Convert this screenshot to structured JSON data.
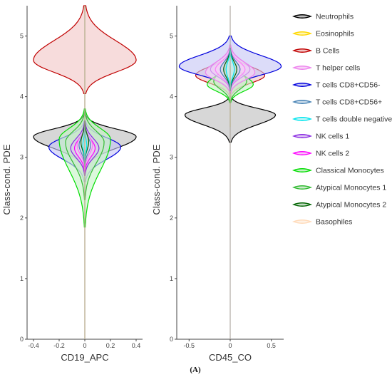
{
  "figure": {
    "caption": "(A)"
  },
  "chart_data": [
    {
      "type": "violin",
      "xlabel": "CD19_APC",
      "ylabel": "Class-cond. PDE",
      "xlim": [
        -0.45,
        0.45
      ],
      "ylim": [
        0,
        5.5
      ],
      "xticks": [
        "-0.4",
        "-0.2",
        "0",
        "0.2",
        "0.4"
      ],
      "yticks": [
        "0",
        "1",
        "2",
        "3",
        "4",
        "5"
      ],
      "series": [
        {
          "name": "Neutrophils",
          "color": "#000000",
          "center": 3.34,
          "halfwidth": 0.4,
          "lo": 2.8,
          "hi": 3.7,
          "shape": "broad"
        },
        {
          "name": "B Cells",
          "color": "#c00000",
          "center": 4.6,
          "halfwidth": 0.4,
          "lo": 4.05,
          "hi": 5.5,
          "shape": "broad"
        },
        {
          "name": "T cells CD8+CD56-",
          "color": "#0000dd",
          "center": 3.17,
          "halfwidth": 0.28,
          "lo": 2.6,
          "hi": 3.6,
          "shape": "broad"
        },
        {
          "name": "Classical Monocytes",
          "color": "#00dd00",
          "center": 3.3,
          "halfwidth": 0.2,
          "lo": 1.85,
          "hi": 3.8,
          "shape": "broad"
        },
        {
          "name": "Atypical Monocytes 1",
          "color": "#33bb33",
          "center": 3.25,
          "halfwidth": 0.15,
          "lo": 2.3,
          "hi": 3.75,
          "shape": "broad"
        },
        {
          "name": "NK cells 1",
          "color": "#8a2be2",
          "center": 3.15,
          "halfwidth": 0.11,
          "lo": 2.7,
          "hi": 3.6,
          "shape": "broad"
        },
        {
          "name": "NK cells 2",
          "color": "#ff00ff",
          "center": 3.15,
          "halfwidth": 0.08,
          "lo": 2.75,
          "hi": 3.55,
          "shape": "broad"
        },
        {
          "name": "T helper cells",
          "color": "#ee82ee",
          "center": 3.2,
          "halfwidth": 0.06,
          "lo": 2.8,
          "hi": 3.55,
          "shape": "broad"
        },
        {
          "name": "T cells CD8+CD56+",
          "color": "#4682b4",
          "center": 3.2,
          "halfwidth": 0.045,
          "lo": 2.85,
          "hi": 3.55,
          "shape": "broad"
        },
        {
          "name": "Atypical Monocytes 2",
          "color": "#006400",
          "center": 3.25,
          "halfwidth": 0.03,
          "lo": 2.9,
          "hi": 3.6,
          "shape": "broad"
        },
        {
          "name": "T cells double negative",
          "color": "#00e5ee",
          "center": 3.2,
          "halfwidth": 0.015,
          "lo": 2.9,
          "hi": 3.5,
          "shape": "broad"
        },
        {
          "name": "Eosinophils",
          "color": "#ffd700",
          "center": 3.0,
          "halfwidth": 0.012,
          "lo": 0.0,
          "hi": 5.5,
          "shape": "thin"
        },
        {
          "name": "Basophiles",
          "color": "#ffdab9",
          "center": 3.0,
          "halfwidth": 0.012,
          "lo": 0.0,
          "hi": 5.5,
          "shape": "thin"
        }
      ]
    },
    {
      "type": "violin",
      "xlabel": "CD45_CO",
      "ylabel": "Class-cond. PDE",
      "xlim": [
        -0.65,
        0.65
      ],
      "ylim": [
        0,
        5.5
      ],
      "xticks": [
        "-0.5",
        "0",
        "0.5"
      ],
      "yticks": [
        "0",
        "1",
        "2",
        "3",
        "4",
        "5"
      ],
      "series": [
        {
          "name": "Neutrophils",
          "color": "#000000",
          "center": 3.7,
          "halfwidth": 0.55,
          "lo": 3.25,
          "hi": 4.0,
          "shape": "broad"
        },
        {
          "name": "B Cells",
          "color": "#c00000",
          "center": 4.35,
          "halfwidth": 0.42,
          "lo": 4.0,
          "hi": 4.75,
          "shape": "broad"
        },
        {
          "name": "T cells CD8+CD56-",
          "color": "#0000dd",
          "center": 4.5,
          "halfwidth": 0.62,
          "lo": 4.1,
          "hi": 5.0,
          "shape": "broad"
        },
        {
          "name": "Classical Monocytes",
          "color": "#00dd00",
          "center": 4.2,
          "halfwidth": 0.28,
          "lo": 3.9,
          "hi": 4.6,
          "shape": "broad"
        },
        {
          "name": "Atypical Monocytes 1",
          "color": "#33bb33",
          "center": 4.25,
          "halfwidth": 0.2,
          "lo": 3.9,
          "hi": 4.7,
          "shape": "broad"
        },
        {
          "name": "NK cells 1",
          "color": "#8a2be2",
          "center": 4.45,
          "halfwidth": 0.24,
          "lo": 4.1,
          "hi": 4.85,
          "shape": "broad"
        },
        {
          "name": "NK cells 2",
          "color": "#ff00ff",
          "center": 4.45,
          "halfwidth": 0.18,
          "lo": 4.1,
          "hi": 4.8,
          "shape": "broad"
        },
        {
          "name": "T helper cells",
          "color": "#ee82ee",
          "center": 4.4,
          "halfwidth": 0.3,
          "lo": 4.05,
          "hi": 4.85,
          "shape": "broad"
        },
        {
          "name": "T cells CD8+CD56+",
          "color": "#4682b4",
          "center": 4.45,
          "halfwidth": 0.12,
          "lo": 4.1,
          "hi": 4.8,
          "shape": "broad"
        },
        {
          "name": "Atypical Monocytes 2",
          "color": "#006400",
          "center": 4.45,
          "halfwidth": 0.08,
          "lo": 4.1,
          "hi": 4.8,
          "shape": "broad"
        },
        {
          "name": "T cells double negative",
          "color": "#00e5ee",
          "center": 4.45,
          "halfwidth": 0.05,
          "lo": 4.1,
          "hi": 4.8,
          "shape": "broad"
        },
        {
          "name": "Eosinophils",
          "color": "#ffd700",
          "center": 3.0,
          "halfwidth": 0.012,
          "lo": 3.5,
          "hi": 4.5,
          "shape": "thin"
        },
        {
          "name": "Basophiles",
          "color": "#ffdab9",
          "center": 3.0,
          "halfwidth": 0.012,
          "lo": 0.0,
          "hi": 5.5,
          "shape": "thin"
        }
      ]
    }
  ],
  "legend": {
    "placement": "right",
    "items": [
      {
        "label": "Neutrophils",
        "color": "#000000",
        "fill": "#bdbdbd"
      },
      {
        "label": "Eosinophils",
        "color": "#ffd700",
        "fill": "#fff6b0"
      },
      {
        "label": "B Cells",
        "color": "#c00000",
        "fill": "#f2c4c4"
      },
      {
        "label": "T helper cells",
        "color": "#ee82ee",
        "fill": "#f7d4f7"
      },
      {
        "label": "T cells CD8+CD56-",
        "color": "#0000dd",
        "fill": "#c4c4f5"
      },
      {
        "label": "T cells CD8+CD56+",
        "color": "#4682b4",
        "fill": "#c9dbea"
      },
      {
        "label": "T cells double negative",
        "color": "#00e5ee",
        "fill": "#c4f6f8"
      },
      {
        "label": "NK cells 1",
        "color": "#8a2be2",
        "fill": "#dcc4f3"
      },
      {
        "label": "NK cells 2",
        "color": "#ff00ff",
        "fill": "#f9c4f9"
      },
      {
        "label": "Classical Monocytes",
        "color": "#00dd00",
        "fill": "#c4f3c4"
      },
      {
        "label": "Atypical Monocytes 1",
        "color": "#33bb33",
        "fill": "#c9ebc9"
      },
      {
        "label": "Atypical Monocytes 2",
        "color": "#006400",
        "fill": "#c4dcc4"
      },
      {
        "label": "Basophiles",
        "color": "#ffdab9",
        "fill": "#fff2e6"
      }
    ]
  }
}
